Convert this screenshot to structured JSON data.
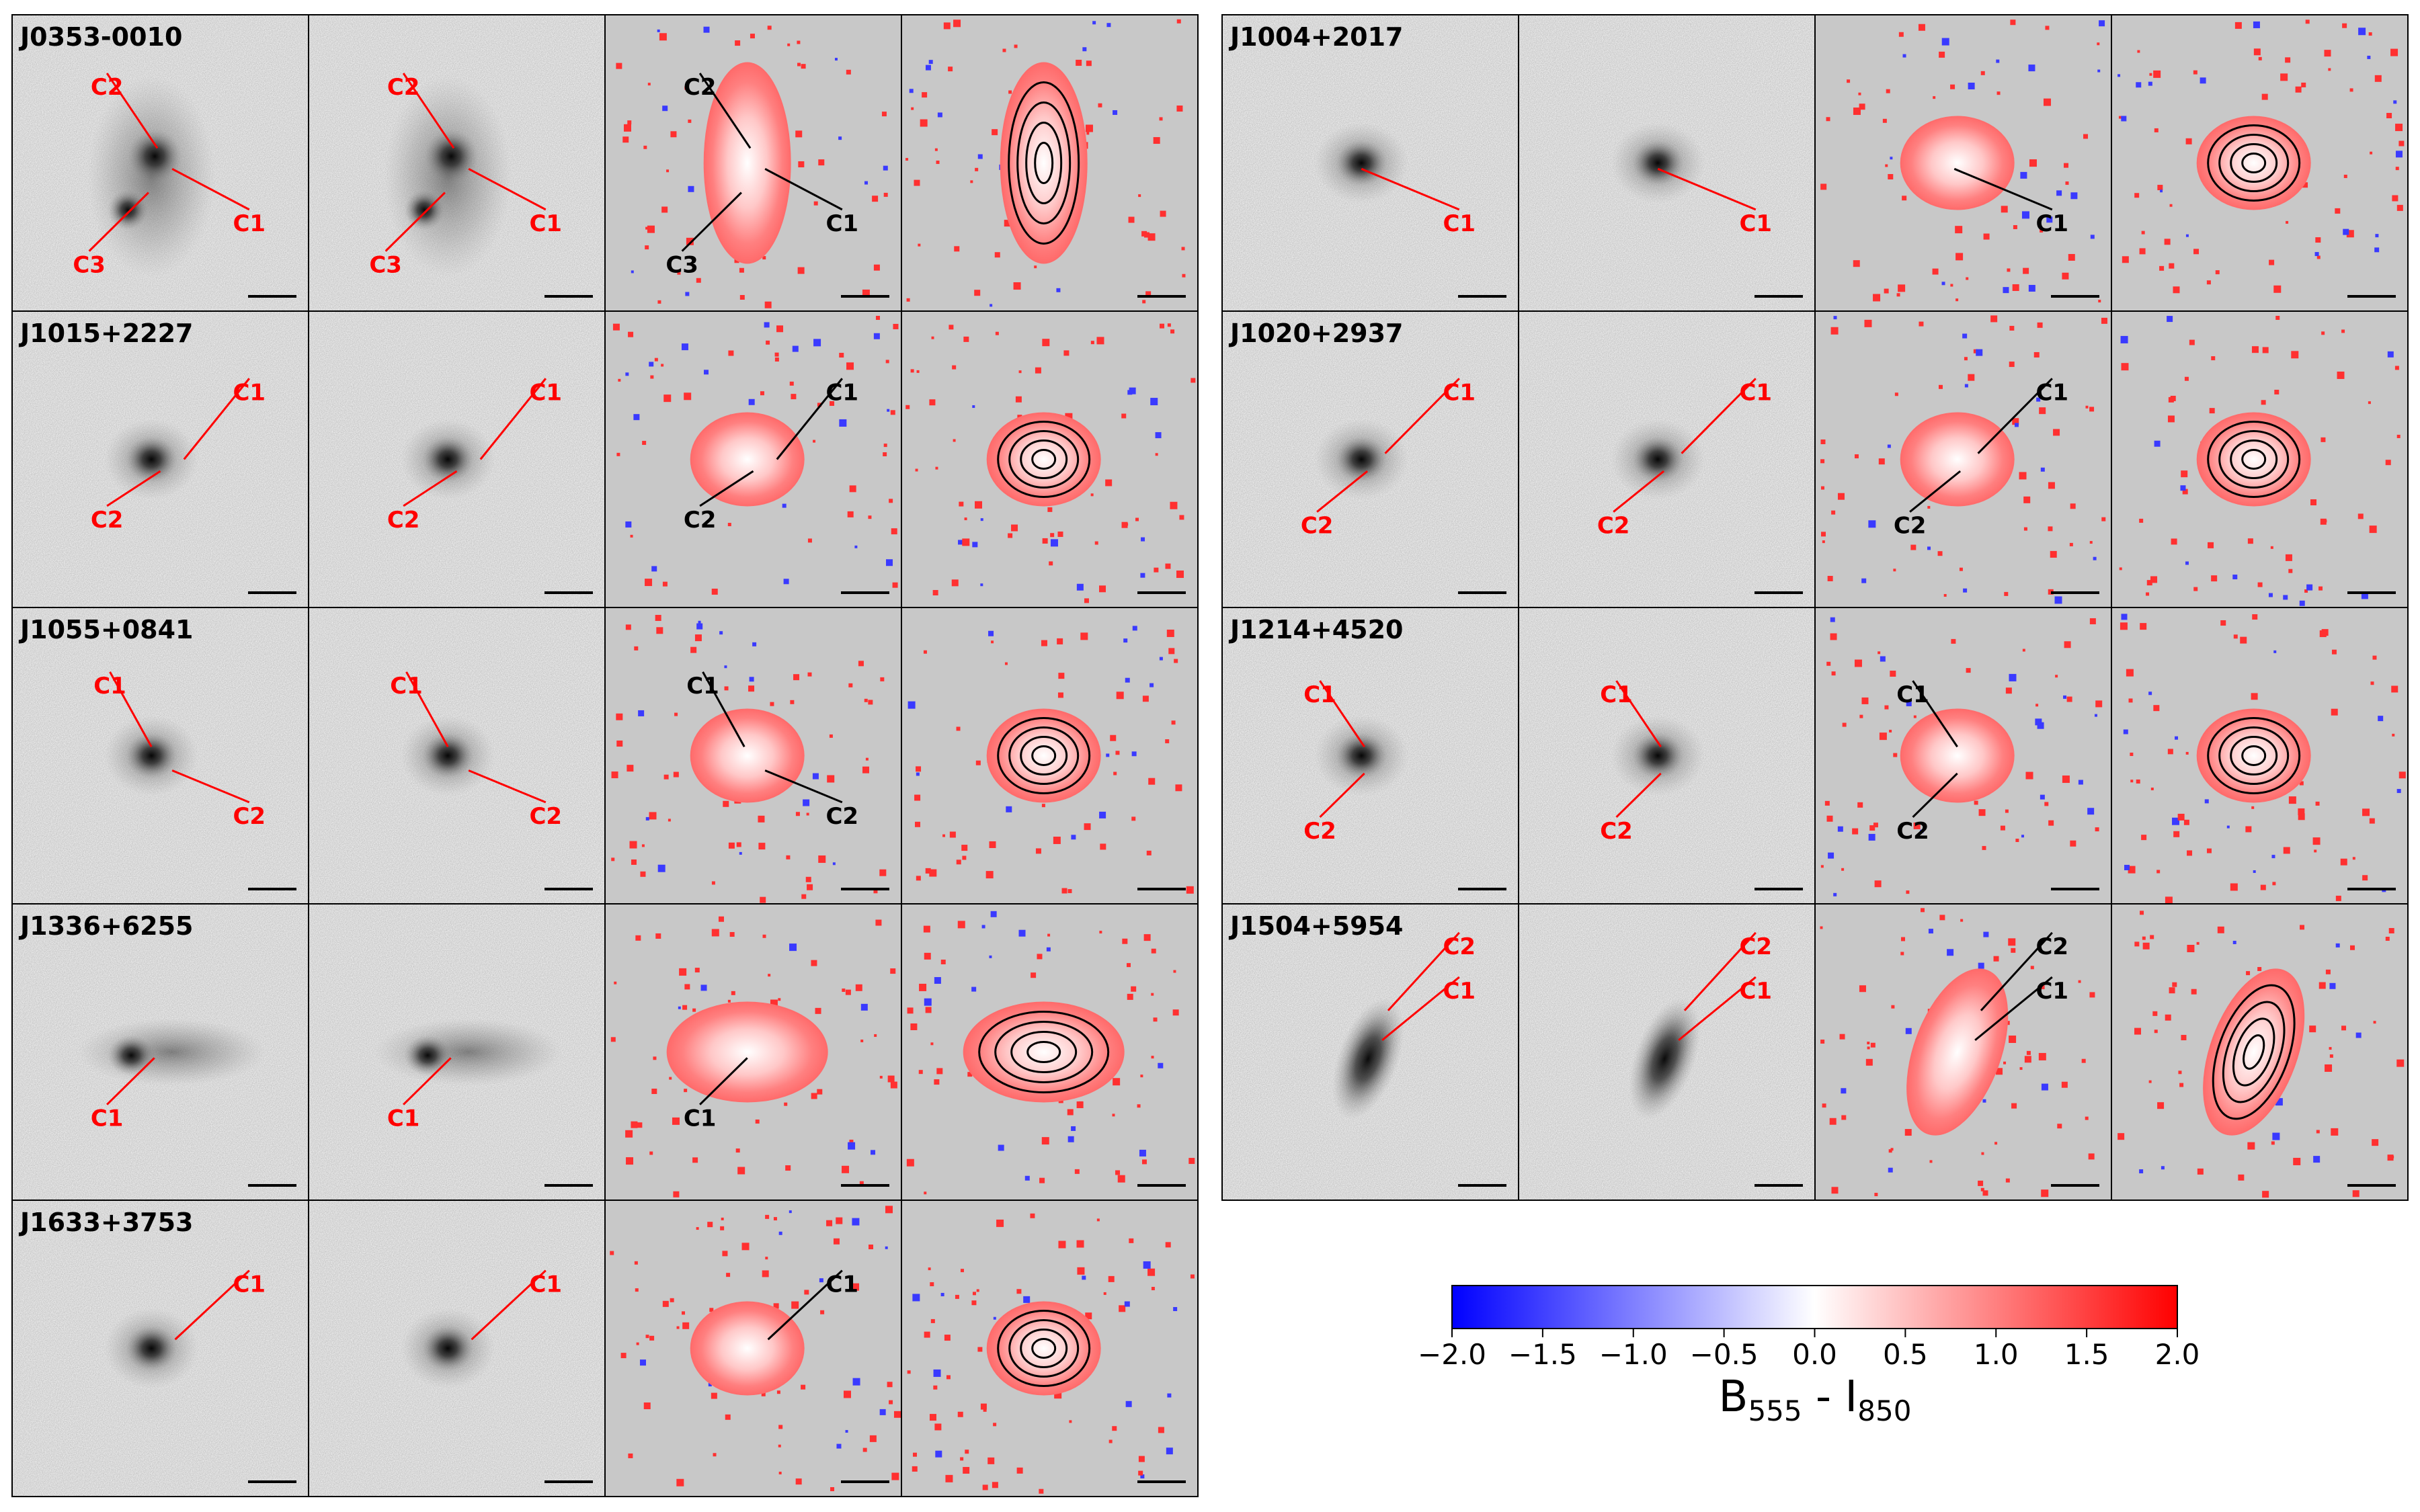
{
  "figure": {
    "colorbar": {
      "ticks": [
        "−2.0",
        "−1.5",
        "−1.0",
        "−0.5",
        "0.0",
        "0.5",
        "1.0",
        "1.5",
        "2.0"
      ],
      "label_main": "B",
      "label_sub1": "555",
      "label_dash": " - I",
      "label_sub2": "850",
      "colors": {
        "low": "#0000ff",
        "mid": "#ffffff",
        "high": "#ff0000"
      }
    },
    "colors": {
      "label_on_image": "#ff0000",
      "label_on_color": "#000000",
      "panel_bg": "#c8c8c8"
    },
    "rows": [
      {
        "name": "J0353-0010",
        "shape": "clumpy",
        "clumps": [
          {
            "label": "C2",
            "ax": 0.49,
            "ay": 0.45,
            "lx": 0.32,
            "ly": 0.22
          },
          {
            "label": "C1",
            "ax": 0.54,
            "ay": 0.52,
            "lx": 0.8,
            "ly": 0.68
          },
          {
            "label": "C3",
            "ax": 0.46,
            "ay": 0.6,
            "lx": 0.26,
            "ly": 0.82
          }
        ]
      },
      {
        "name": "J1004+2017",
        "shape": "compact",
        "clumps": [
          {
            "label": "C1",
            "ax": 0.47,
            "ay": 0.52,
            "lx": 0.8,
            "ly": 0.68
          }
        ]
      },
      {
        "name": "J1015+2227",
        "shape": "compact2",
        "clumps": [
          {
            "label": "C1",
            "ax": 0.58,
            "ay": 0.5,
            "lx": 0.8,
            "ly": 0.25
          },
          {
            "label": "C2",
            "ax": 0.5,
            "ay": 0.54,
            "lx": 0.32,
            "ly": 0.68
          }
        ]
      },
      {
        "name": "J1020+2937",
        "shape": "compact2",
        "clumps": [
          {
            "label": "C1",
            "ax": 0.55,
            "ay": 0.48,
            "lx": 0.8,
            "ly": 0.25
          },
          {
            "label": "C2",
            "ax": 0.49,
            "ay": 0.54,
            "lx": 0.32,
            "ly": 0.7
          }
        ]
      },
      {
        "name": "J1055+0841",
        "shape": "compact2",
        "clumps": [
          {
            "label": "C1",
            "ax": 0.47,
            "ay": 0.47,
            "lx": 0.33,
            "ly": 0.24
          },
          {
            "label": "C2",
            "ax": 0.54,
            "ay": 0.55,
            "lx": 0.8,
            "ly": 0.68
          }
        ]
      },
      {
        "name": "J1214+4520",
        "shape": "compact2",
        "clumps": [
          {
            "label": "C1",
            "ax": 0.48,
            "ay": 0.47,
            "lx": 0.33,
            "ly": 0.27
          },
          {
            "label": "C2",
            "ax": 0.48,
            "ay": 0.56,
            "lx": 0.33,
            "ly": 0.73
          }
        ]
      },
      {
        "name": "J1336+6255",
        "shape": "disk",
        "clumps": [
          {
            "label": "C1",
            "ax": 0.48,
            "ay": 0.52,
            "lx": 0.32,
            "ly": 0.7
          }
        ]
      },
      {
        "name": "J1504+5954",
        "shape": "tilted",
        "clumps": [
          {
            "label": "C2",
            "ax": 0.56,
            "ay": 0.36,
            "lx": 0.8,
            "ly": 0.12
          },
          {
            "label": "C1",
            "ax": 0.54,
            "ay": 0.46,
            "lx": 0.8,
            "ly": 0.27
          }
        ]
      },
      {
        "name": "J1633+3753",
        "shape": "compact",
        "clumps": [
          {
            "label": "C1",
            "ax": 0.55,
            "ay": 0.47,
            "lx": 0.8,
            "ly": 0.26
          }
        ]
      }
    ]
  }
}
